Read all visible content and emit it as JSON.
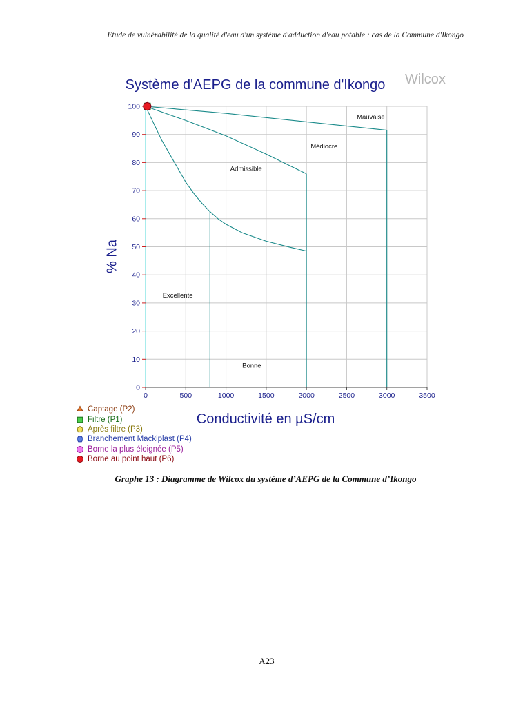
{
  "page": {
    "header": "Etude de vulnérabilité de la qualité d'eau d'un système d'adduction d'eau potable : cas de la Commune d'Ikongo",
    "caption": "Graphe 13 : Diagramme de Wilcox du système d’AEPG de la Commune d’Ikongo",
    "page_number": "A23"
  },
  "chart_data": {
    "type": "scatter",
    "title": "Système d'AEPG de la commune d'Ikongo",
    "diagram_label": "Wilcox",
    "xlabel": "Conductivité en µS/cm",
    "ylabel": "% Na",
    "xlim": [
      0,
      3500
    ],
    "ylim": [
      0,
      100
    ],
    "xticks": [
      "0",
      "500",
      "1000",
      "1500",
      "2000",
      "2500",
      "3000",
      "3500"
    ],
    "yticks": [
      "0",
      "10",
      "20",
      "30",
      "40",
      "50",
      "60",
      "70",
      "80",
      "90",
      "100"
    ],
    "grid": true,
    "legend_position": "bottom-left",
    "classes": [
      {
        "label": "Excellente",
        "x": 400,
        "y": 32
      },
      {
        "label": "Bonne",
        "x": 1320,
        "y": 7
      },
      {
        "label": "Admissible",
        "x": 1250,
        "y": 77
      },
      {
        "label": "Médiocre",
        "x": 2220,
        "y": 85
      },
      {
        "label": "Mauvaise",
        "x": 2800,
        "y": 95.5
      }
    ],
    "boundaries": [
      {
        "points": [
          [
            0,
            100
          ],
          [
            200,
            88
          ],
          [
            400,
            78
          ],
          [
            500,
            73
          ],
          [
            600,
            69
          ],
          [
            700,
            65.5
          ],
          [
            800,
            62.5
          ],
          [
            900,
            60
          ],
          [
            1000,
            58
          ],
          [
            1200,
            55
          ],
          [
            1500,
            52
          ],
          [
            1800,
            49.8
          ],
          [
            2000,
            48.5
          ]
        ]
      },
      {
        "points": [
          [
            0,
            100
          ],
          [
            500,
            95
          ],
          [
            1000,
            89.5
          ],
          [
            1500,
            83
          ],
          [
            2000,
            76
          ]
        ]
      },
      {
        "points": [
          [
            0,
            100
          ],
          [
            1000,
            97.5
          ],
          [
            2000,
            94.5
          ],
          [
            3000,
            91.5
          ]
        ]
      },
      {
        "points": [
          [
            800,
            62.5
          ],
          [
            800,
            0
          ]
        ]
      },
      {
        "points": [
          [
            2000,
            76
          ],
          [
            2000,
            0
          ]
        ]
      },
      {
        "points": [
          [
            3000,
            91.5
          ],
          [
            3000,
            0
          ]
        ]
      }
    ],
    "series": [
      {
        "name": "Captage (P2)",
        "marker": "triangle",
        "color": "#8b3a0e",
        "fill": "#e87a2a",
        "x": [
          20
        ],
        "y": [
          100
        ]
      },
      {
        "name": "Filtre  (P1)",
        "marker": "square",
        "color": "#1a6e1a",
        "fill": "#4cd04c",
        "x": [
          20
        ],
        "y": [
          100
        ]
      },
      {
        "name": "Après filtre (P3)",
        "marker": "pentagon",
        "color": "#8a7a10",
        "fill": "#f2e060",
        "x": [
          20
        ],
        "y": [
          100
        ]
      },
      {
        "name": "Branchement Mackiplast (P4)",
        "marker": "hexagon",
        "color": "#2a3fa8",
        "fill": "#5b7fe0",
        "x": [
          20
        ],
        "y": [
          100
        ]
      },
      {
        "name": "Borne la plus éloignée (P5)",
        "marker": "circle",
        "color": "#9b1f9b",
        "fill": "#f07df0",
        "x": [
          20
        ],
        "y": [
          100
        ]
      },
      {
        "name": "Borne au point haut (P6)",
        "marker": "circle",
        "color": "#8b0a12",
        "fill": "#e81a22",
        "x": [
          20
        ],
        "y": [
          100
        ]
      }
    ],
    "colors": {
      "title": "#1a1f8c",
      "tick_labels": "#1a1f8c",
      "grid": "#c8c8c8",
      "boundaries": "#1a8a8a",
      "y_axis": "#6ee0e0",
      "diagram_label": "#b4b4b4"
    }
  }
}
